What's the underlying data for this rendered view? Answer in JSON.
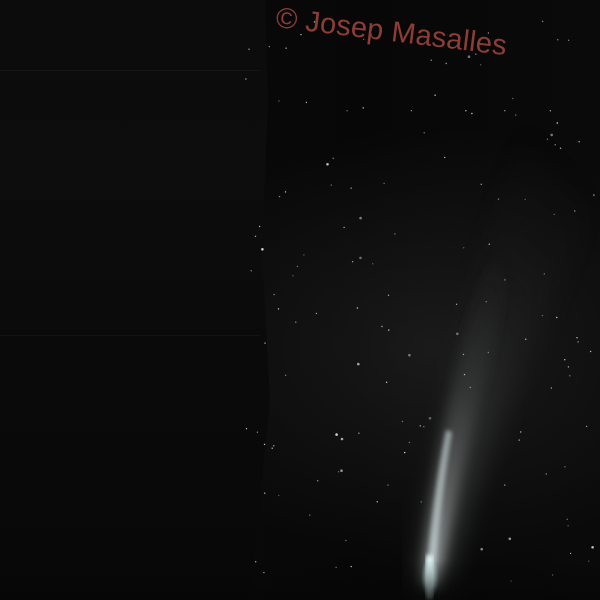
{
  "photo": {
    "subject": "comet",
    "watermark_text": "© Josep Masalles",
    "colors": {
      "sky": "#070707",
      "tail": "#c8cccc",
      "nucleus": "#e8ffff",
      "watermark": "#a5463f"
    }
  }
}
